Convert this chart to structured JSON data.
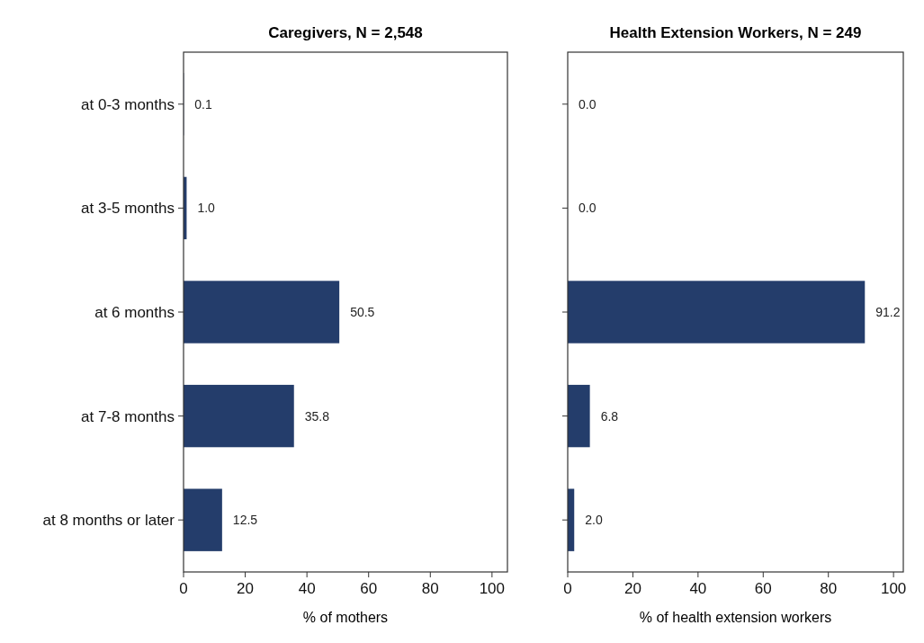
{
  "chart_data": [
    {
      "type": "bar",
      "orientation": "horizontal",
      "title": "Caregivers, N = 2,548",
      "xlabel": "% of mothers",
      "categories": [
        "at 0-3 months",
        "at 3-5 months",
        "at 6 months",
        "at 7-8 months",
        "at 8 months or later"
      ],
      "values": [
        0.1,
        1.0,
        50.5,
        35.8,
        12.5
      ],
      "value_labels": [
        "0.1",
        "1.0",
        "50.5",
        "35.8",
        "12.5"
      ],
      "color": "#243d6b",
      "xlim": [
        0,
        105
      ],
      "xticks": [
        0,
        20,
        40,
        60,
        80,
        100
      ],
      "grid": false
    },
    {
      "type": "bar",
      "orientation": "horizontal",
      "title": "Health Extension Workers, N = 249",
      "xlabel": "% of health extension workers",
      "categories": [
        null,
        null,
        null,
        null,
        null
      ],
      "values": [
        0.0,
        0.0,
        91.2,
        6.8,
        2.0
      ],
      "value_labels": [
        "0.0",
        "0.0",
        "91.2",
        "6.8",
        "2.0"
      ],
      "color": "#243d6b",
      "xlim": [
        0,
        103
      ],
      "xticks": [
        0,
        20,
        40,
        60,
        80,
        100
      ],
      "grid": false,
      "tick_labels": "x"
    }
  ]
}
